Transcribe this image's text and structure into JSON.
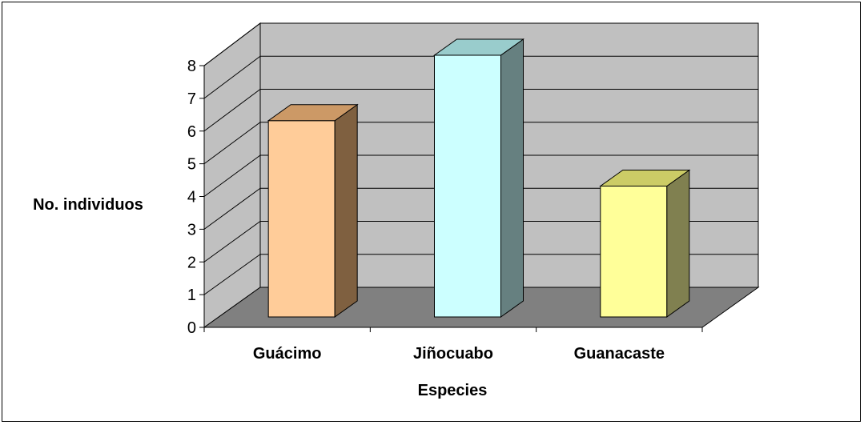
{
  "chart_data": {
    "type": "bar",
    "title": "",
    "xlabel": "Especies",
    "ylabel": "No. individuos",
    "categories": [
      "Guácimo",
      "Jiñocuabo",
      "Guanacaste"
    ],
    "values": [
      6,
      8,
      4
    ],
    "ylim": [
      0,
      8
    ],
    "yticks": [
      "0",
      "1",
      "2",
      "3",
      "4",
      "5",
      "6",
      "7",
      "8"
    ],
    "grid": true,
    "legend": "none",
    "style": "3d-column",
    "colors": {
      "bars": [
        {
          "front": "#FFCC99",
          "top": "#CC9966",
          "side": "#7F6040"
        },
        {
          "front": "#CCFFFF",
          "top": "#99CCCC",
          "side": "#668080"
        },
        {
          "front": "#FFFF99",
          "top": "#CCCC66",
          "side": "#808050"
        }
      ],
      "back_wall": "#C0C0C0",
      "side_wall": "#C0C0C0",
      "floor": "#808080",
      "gridline": "#000000"
    }
  }
}
